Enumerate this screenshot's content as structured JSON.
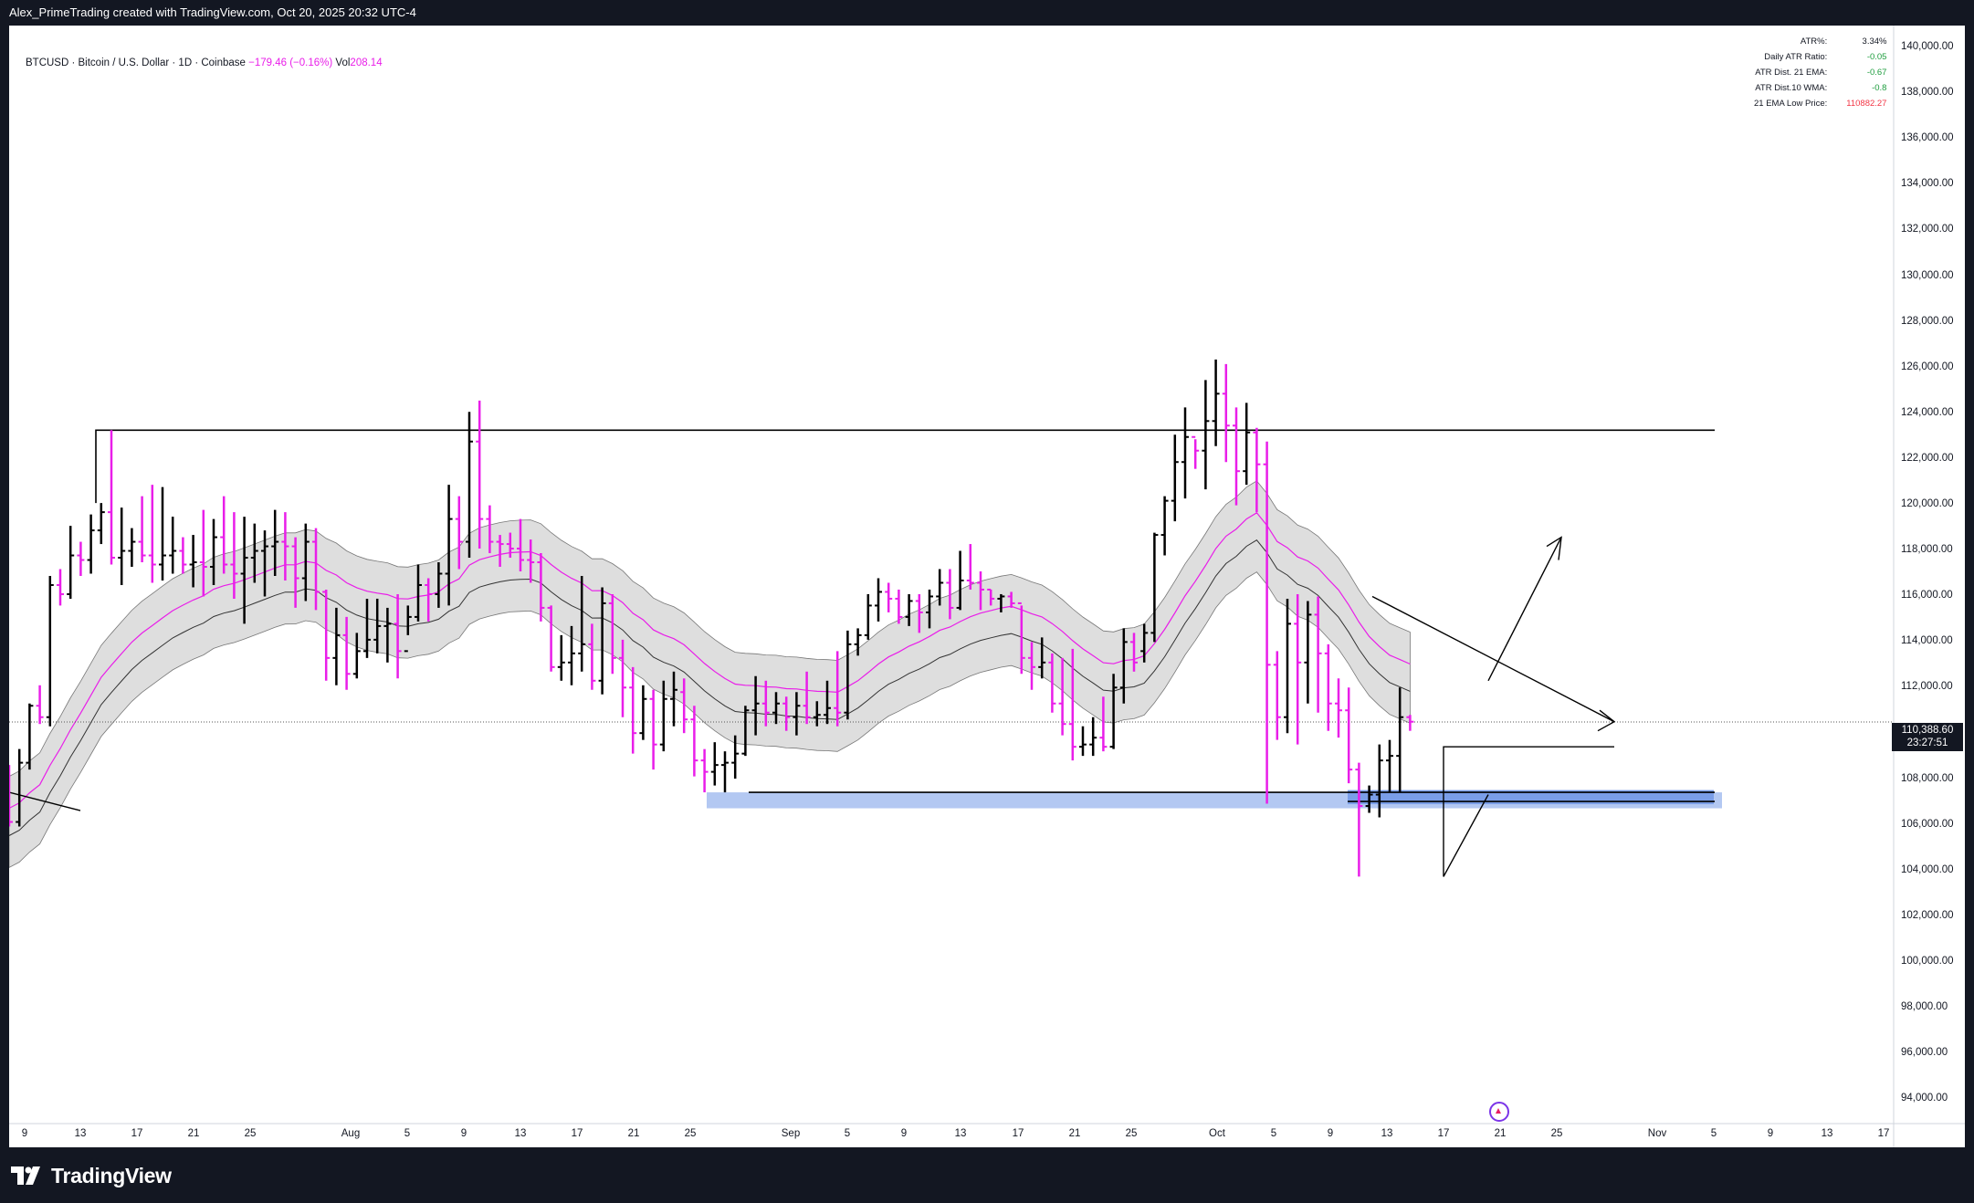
{
  "header": {
    "credit": "Alex_PrimeTrading created with TradingView.com, Oct 20, 2025 20:32 UTC-4"
  },
  "symbol": {
    "name": "BTCUSD · Bitcoin / U.S. Dollar · 1D · Coinbase",
    "change": "−179.46 (−0.16%)",
    "vol_label": "Vol",
    "vol_value": "208.14"
  },
  "info_table": [
    {
      "label": "ATR%:",
      "value": "3.34%",
      "color": "#131722"
    },
    {
      "label": "Daily ATR Ratio:",
      "value": "-0.05",
      "color": "#1e9d3e"
    },
    {
      "label": "ATR Dist. 21 EMA:",
      "value": "-0.67",
      "color": "#1e9d3e"
    },
    {
      "label": "ATR Dist.10 WMA:",
      "value": "-0.8",
      "color": "#1e9d3e"
    },
    {
      "label": "21 EMA Low Price:",
      "value": "110882.27",
      "color": "#f23645"
    }
  ],
  "price_tag": {
    "price": "110,388.60",
    "countdown": "23:27:51"
  },
  "logo": {
    "text": "TradingView"
  },
  "colors": {
    "up": "#000000",
    "down": "#e91ee9",
    "band": "#d8d8d8",
    "ema": "#e91ee9",
    "zone": "#b3c8f2"
  },
  "chart_data": {
    "type": "ohlc-bar",
    "y_ticks": [
      "140,000.00",
      "138,000.00",
      "136,000.00",
      "134,000.00",
      "132,000.00",
      "130,000.00",
      "128,000.00",
      "126,000.00",
      "124,000.00",
      "122,000.00",
      "120,000.00",
      "118,000.00",
      "116,000.00",
      "114,000.00",
      "112,000.00",
      "110,000.00",
      "108,000.00",
      "106,000.00",
      "104,000.00",
      "102,000.00",
      "100,000.00",
      "98,000.00",
      "96,000.00",
      "94,000.00"
    ],
    "x_ticks": [
      "9",
      "13",
      "17",
      "21",
      "25",
      "Aug",
      "5",
      "9",
      "13",
      "17",
      "21",
      "25",
      "Sep",
      "5",
      "9",
      "13",
      "17",
      "21",
      "25",
      "Oct",
      "5",
      "9",
      "13",
      "17",
      "21",
      "25",
      "Nov",
      "5",
      "9",
      "13",
      "17"
    ],
    "ylim": [
      93500,
      140500
    ],
    "bars": [
      [
        107500,
        108500,
        105800,
        106000
      ],
      [
        106000,
        109200,
        105800,
        108600
      ],
      [
        108600,
        111200,
        108300,
        111100
      ],
      [
        111100,
        112000,
        110300,
        110600
      ],
      [
        110600,
        116800,
        110200,
        116400
      ],
      [
        116400,
        117100,
        115500,
        116000
      ],
      [
        116000,
        119000,
        115800,
        117700
      ],
      [
        117700,
        118300,
        116800,
        117500
      ],
      [
        117500,
        119500,
        116900,
        118800
      ],
      [
        118800,
        120000,
        118200,
        119600
      ],
      [
        119600,
        123200,
        117300,
        117600
      ],
      [
        117600,
        119800,
        116400,
        117900
      ],
      [
        117900,
        118900,
        117200,
        118300
      ],
      [
        118300,
        120300,
        117400,
        117700
      ],
      [
        117700,
        120800,
        116500,
        117300
      ],
      [
        117300,
        120700,
        116600,
        117700
      ],
      [
        117700,
        119400,
        116900,
        117900
      ],
      [
        117900,
        118500,
        116900,
        117300
      ],
      [
        117300,
        118600,
        116300,
        117400
      ],
      [
        117400,
        119700,
        115900,
        117200
      ],
      [
        117200,
        119300,
        116400,
        118500
      ],
      [
        118500,
        120300,
        116900,
        117300
      ],
      [
        117300,
        119600,
        115800,
        116900
      ],
      [
        116900,
        119400,
        114700,
        117600
      ],
      [
        117600,
        119100,
        116500,
        117900
      ],
      [
        117900,
        118800,
        115900,
        118100
      ],
      [
        118100,
        119700,
        116800,
        118300
      ],
      [
        118300,
        119600,
        116600,
        118100
      ],
      [
        118100,
        118500,
        115400,
        116700
      ],
      [
        116700,
        119100,
        115700,
        118300
      ],
      [
        118300,
        118900,
        115300,
        116100
      ],
      [
        116100,
        116200,
        112200,
        113200
      ],
      [
        113200,
        115400,
        112000,
        114200
      ],
      [
        114200,
        115000,
        111800,
        112500
      ],
      [
        112500,
        114300,
        112300,
        113500
      ],
      [
        113500,
        115800,
        113200,
        114000
      ],
      [
        114000,
        115800,
        113400,
        114600
      ],
      [
        114600,
        115400,
        113000,
        114700
      ],
      [
        114700,
        116000,
        112300,
        113500
      ],
      [
        113500,
        115500,
        114200,
        115000
      ],
      [
        115000,
        117300,
        114800,
        116400
      ],
      [
        116400,
        116700,
        114800,
        116000
      ],
      [
        116000,
        117400,
        115400,
        116900
      ],
      [
        116900,
        120800,
        115500,
        119300
      ],
      [
        119300,
        120300,
        117100,
        118300
      ],
      [
        118300,
        124000,
        117600,
        122700
      ],
      [
        122700,
        124500,
        118000,
        119300
      ],
      [
        119300,
        119900,
        117800,
        118300
      ],
      [
        118300,
        118600,
        117200,
        118200
      ],
      [
        118200,
        118700,
        117600,
        118000
      ],
      [
        118000,
        119300,
        117000,
        117500
      ],
      [
        117500,
        118400,
        116500,
        117400
      ],
      [
        117400,
        117800,
        114800,
        115400
      ],
      [
        115400,
        115500,
        112600,
        112800
      ],
      [
        112800,
        114200,
        112200,
        113000
      ],
      [
        113000,
        114600,
        112000,
        113400
      ],
      [
        113400,
        116800,
        112600,
        113800
      ],
      [
        113800,
        114700,
        111800,
        112200
      ],
      [
        112200,
        116300,
        111600,
        115600
      ],
      [
        115600,
        116000,
        112500,
        113200
      ],
      [
        113200,
        114000,
        110600,
        111900
      ],
      [
        111900,
        112800,
        109000,
        109900
      ],
      [
        109900,
        112000,
        109600,
        111400
      ],
      [
        111400,
        111800,
        108300,
        109400
      ],
      [
        109400,
        112200,
        109100,
        111400
      ],
      [
        111400,
        112600,
        110200,
        111800
      ],
      [
        111700,
        112300,
        109900,
        110500
      ],
      [
        110500,
        111100,
        108000,
        108700
      ],
      [
        108700,
        109200,
        107300,
        108200
      ],
      [
        108200,
        109500,
        107600,
        108500
      ],
      [
        108500,
        109100,
        107300,
        108600
      ],
      [
        108600,
        109800,
        107900,
        109000
      ],
      [
        109000,
        111100,
        108900,
        110900
      ],
      [
        110900,
        112400,
        109800,
        111200
      ],
      [
        111200,
        112200,
        110200,
        110800
      ],
      [
        110800,
        111700,
        110300,
        111200
      ],
      [
        111200,
        111500,
        110000,
        110600
      ],
      [
        110600,
        111700,
        109800,
        111100
      ],
      [
        111100,
        112600,
        110300,
        110600
      ],
      [
        110600,
        111300,
        110200,
        110700
      ],
      [
        110700,
        112200,
        110300,
        111000
      ],
      [
        111000,
        113500,
        110200,
        110800
      ],
      [
        110800,
        114400,
        110500,
        113800
      ],
      [
        113800,
        114500,
        113300,
        114200
      ],
      [
        114200,
        116000,
        114000,
        115500
      ],
      [
        115500,
        116700,
        114800,
        116100
      ],
      [
        116100,
        116500,
        115200,
        115800
      ],
      [
        115800,
        116200,
        114700,
        115000
      ],
      [
        115000,
        116000,
        114600,
        115700
      ],
      [
        115700,
        116000,
        114300,
        115200
      ],
      [
        115200,
        116200,
        114500,
        115900
      ],
      [
        115900,
        117100,
        115500,
        116500
      ],
      [
        116500,
        117100,
        114900,
        115400
      ],
      [
        115400,
        117900,
        115300,
        116600
      ],
      [
        116600,
        118200,
        116200,
        116500
      ],
      [
        116500,
        117000,
        115300,
        116200
      ],
      [
        116200,
        116200,
        115500,
        115800
      ],
      [
        115800,
        116000,
        115200,
        115900
      ],
      [
        115900,
        116100,
        115400,
        115600
      ],
      [
        115600,
        115500,
        112500,
        113200
      ],
      [
        113200,
        113900,
        111800,
        112800
      ],
      [
        112800,
        114100,
        112300,
        113000
      ],
      [
        113000,
        113400,
        110800,
        111200
      ],
      [
        111200,
        113200,
        109800,
        110300
      ],
      [
        110300,
        113600,
        108700,
        109300
      ],
      [
        109300,
        110200,
        108900,
        109400
      ],
      [
        109400,
        110600,
        108900,
        109700
      ],
      [
        109700,
        111500,
        109100,
        109300
      ],
      [
        109300,
        112500,
        109200,
        111900
      ],
      [
        111900,
        114500,
        111200,
        113900
      ],
      [
        113900,
        114300,
        112600,
        113000
      ],
      [
        113500,
        114700,
        113000,
        114300
      ],
      [
        114300,
        118700,
        113900,
        118600
      ],
      [
        118600,
        120300,
        117700,
        120100
      ],
      [
        120100,
        123000,
        119200,
        121800
      ],
      [
        121800,
        124200,
        120200,
        122900
      ],
      [
        122900,
        122800,
        121500,
        122300
      ],
      [
        122300,
        125400,
        120600,
        123600
      ],
      [
        123600,
        126300,
        122500,
        124800
      ],
      [
        124800,
        126100,
        121800,
        123400
      ],
      [
        123400,
        124200,
        119900,
        121400
      ],
      [
        121400,
        124400,
        120800,
        123100
      ],
      [
        123100,
        123300,
        119600,
        121700
      ],
      [
        121700,
        122700,
        106800,
        112900
      ],
      [
        112900,
        113500,
        109600,
        110600
      ],
      [
        110600,
        115800,
        109900,
        114700
      ],
      [
        114700,
        116000,
        109400,
        113000
      ],
      [
        113000,
        115700,
        111200,
        115100
      ],
      [
        115100,
        115900,
        110800,
        113400
      ],
      [
        113400,
        113800,
        110000,
        111200
      ],
      [
        111200,
        112300,
        109700,
        110900
      ],
      [
        110900,
        111900,
        107700,
        108300
      ],
      [
        108300,
        108600,
        103600,
        106700
      ],
      [
        106700,
        107600,
        106400,
        107200
      ],
      [
        107200,
        109400,
        106200,
        108700
      ],
      [
        108700,
        109600,
        107300,
        108900
      ],
      [
        108900,
        111900,
        107300,
        110600
      ],
      [
        110600,
        110700,
        110000,
        110400
      ]
    ]
  }
}
